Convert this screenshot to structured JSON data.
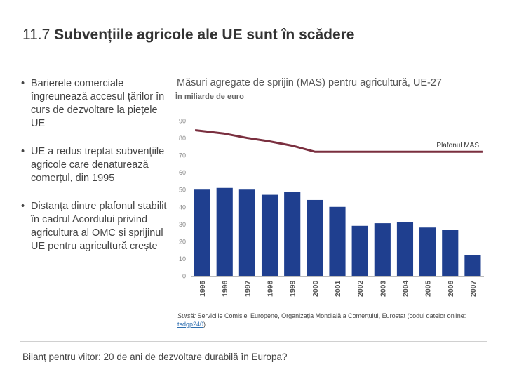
{
  "slide": {
    "number": "11.7",
    "title": "Subvențiile agricole ale UE sunt în scădere"
  },
  "bullets": [
    "Barierele comerciale îngreunează accesul țărilor în curs de dezvoltare la piețele UE",
    "UE a redus treptat subvențiile agricole care denaturează comerțul, din 1995",
    "Distanța dintre plafonul stabilit în cadrul Acordului privind agricultura al OMC și sprijinul UE pentru agricultură crește"
  ],
  "chart_data": {
    "type": "bar",
    "title": "Măsuri agregate de sprijin (MAS) pentru agricultură, UE-27",
    "subtitle": "În miliarde de euro",
    "categories": [
      "1995",
      "1996",
      "1997",
      "1998",
      "1999",
      "2000",
      "2001",
      "2002",
      "2003",
      "2004",
      "2005",
      "2006",
      "2007"
    ],
    "series": [
      {
        "values": [
          50.0,
          51.0,
          50.0,
          47.0,
          48.5,
          44.0,
          40.0,
          29.0,
          30.5,
          31.0,
          28.0,
          26.5,
          12.0
        ],
        "color": "#1f3f8f"
      }
    ],
    "line": {
      "name": "Plafonul MAS",
      "x": [
        "1995",
        "1996",
        "1997",
        "1998",
        "1999",
        "2000",
        "2001",
        "2002",
        "2003",
        "2004",
        "2005",
        "2006",
        "2007"
      ],
      "values": [
        84.5,
        82.5,
        80.0,
        78.0,
        75.5,
        72.0,
        72.0,
        72.0,
        72.0,
        72.0,
        72.0,
        72.0,
        72.0
      ],
      "color": "#7a2f3f"
    },
    "y_ticks": [
      "0",
      "10",
      "20",
      "30",
      "40",
      "50",
      "60",
      "70",
      "80",
      "90"
    ],
    "ylim": [
      0,
      90
    ],
    "grid": false
  },
  "source": {
    "label": "Sursă:",
    "text": " Serviciile Comisiei Europene, Organizația Mondială a Comerțului, Eurostat (codul datelor online: ",
    "link": "tsdgp240",
    "end": ")"
  },
  "footer": "Bilanț pentru viitor: 20 de ani de dezvoltare durabilă în Europa?"
}
